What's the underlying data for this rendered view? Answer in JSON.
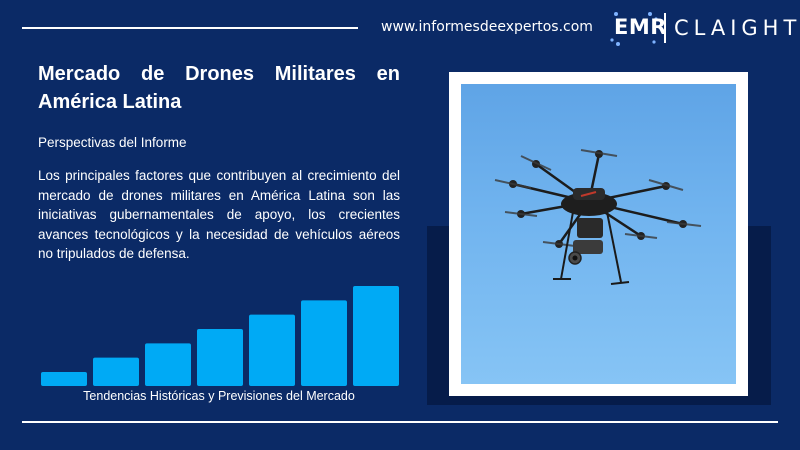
{
  "header": {
    "site_url": "www.informesdeexpertos.com",
    "logo_left": "EMR",
    "logo_right": "CLAIGHT"
  },
  "content": {
    "title": "Mercado de Drones Militares en América Latina",
    "subtitle": "Perspectivas del Informe",
    "body": "Los principales factores que contribuyen al crecimiento del mercado de drones militares en América Latina son las iniciativas gubernamentales de apoyo, los crecientes avances tecnológicos y la necesidad de vehículos aéreos no tripulados de defensa."
  },
  "chart": {
    "caption": "Tendencias Históricas y Previsiones del Mercado",
    "bar_levels": [
      1,
      2,
      3,
      4,
      5,
      6,
      7
    ],
    "bar_color": "#00aaf5"
  },
  "image": {
    "subject": "military-drone-photo"
  },
  "colors": {
    "background": "#0b2a66",
    "accent": "#00aaf5",
    "text": "#ffffff"
  }
}
